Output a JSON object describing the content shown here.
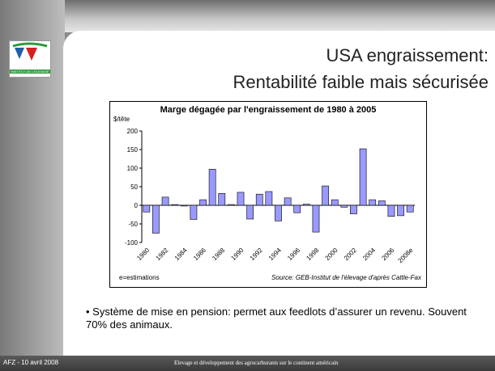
{
  "slide": {
    "logo_text": "INSTITUT DE L'ÉLEVAGE",
    "title_lines": [
      "USA engraissement:",
      "Rentabilité faible mais sécurisée"
    ],
    "bullet": "• Système de mise en pension: permet aux feedlots d’assurer un revenu. Souvent 70% des animaux.",
    "footer_left": "AFZ - 10 avril 2008",
    "footer_center": "Elevage et développement des agrocarburants sur le continent américain"
  },
  "chart_data": {
    "type": "bar",
    "title": "Marge dégagée par l'engraissement de 1980 à 2005",
    "y_label": "$/tête",
    "note_left": "e=estimations",
    "note_right": "Source: GEB-Institut de l'élevage d'après Cattle-Fax",
    "categories": [
      "1980",
      null,
      "1982",
      null,
      "1984",
      null,
      "1986",
      null,
      "1988",
      null,
      "1990",
      null,
      "1992",
      null,
      "1994",
      null,
      "1996",
      null,
      "1998",
      null,
      "2000",
      null,
      "2002",
      null,
      "2004",
      null,
      "2006",
      null,
      "2008e"
    ],
    "values": [
      -18,
      -75,
      22,
      2,
      -2,
      -38,
      15,
      97,
      32,
      2,
      35,
      -37,
      30,
      37,
      -42,
      20,
      -20,
      3,
      -72,
      52,
      15,
      -5,
      -23,
      152,
      15,
      12,
      -30,
      -28,
      -18
    ],
    "color": "#9999ff",
    "ylim": [
      -100,
      200
    ],
    "yticks": [
      -100,
      -50,
      0,
      50,
      100,
      150,
      200
    ]
  }
}
